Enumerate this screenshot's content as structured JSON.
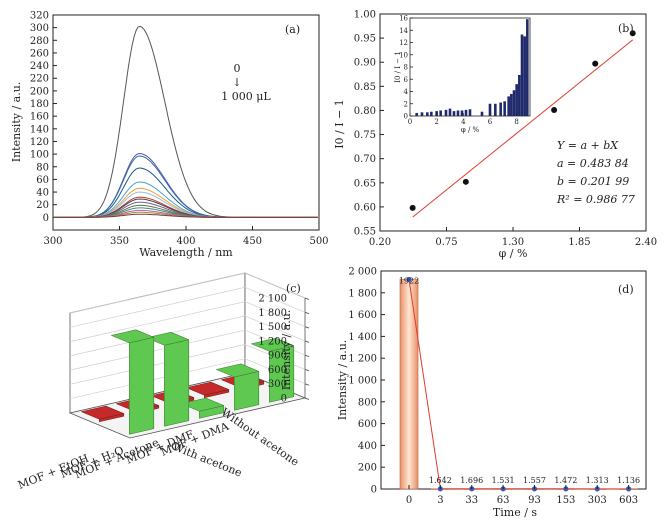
{
  "chart_data": [
    {
      "type": "line",
      "panel_label": "(a)",
      "xlabel": "Wavelength / nm",
      "ylabel": "Intensity / a.u.",
      "xlim": [
        300,
        500
      ],
      "ylim": [
        -20,
        320
      ],
      "xticks": [
        300,
        350,
        400,
        450,
        500
      ],
      "yticks": [
        0,
        20,
        40,
        60,
        80,
        100,
        120,
        140,
        160,
        180,
        200,
        220,
        240,
        260,
        280,
        300,
        320
      ],
      "peak_x": 365,
      "series": [
        {
          "peak": 302,
          "color": "#555555"
        },
        {
          "peak": 101,
          "color": "#5a55a0"
        },
        {
          "peak": 97,
          "color": "#2f6fb0"
        },
        {
          "peak": 78,
          "color": "#1d5a88"
        },
        {
          "peak": 56,
          "color": "#4aa0d8"
        },
        {
          "peak": 46,
          "color": "#f0a030"
        },
        {
          "peak": 40,
          "color": "#8ec3e8"
        },
        {
          "peak": 32,
          "color": "#c0392b"
        },
        {
          "peak": 29,
          "color": "#444444"
        },
        {
          "peak": 24,
          "color": "#7a5a9a"
        },
        {
          "peak": 19,
          "color": "#5a7a3a"
        },
        {
          "peak": 15,
          "color": "#3a8a8a"
        },
        {
          "peak": 11,
          "color": "#c45a90"
        },
        {
          "peak": 8,
          "color": "#a08a3a"
        },
        {
          "peak": 5,
          "color": "#7a3a3a"
        }
      ],
      "annotation_top": "0",
      "annotation_arrow": "↓",
      "annotation_bottom": "1 000 μL"
    },
    {
      "type": "scatter",
      "panel_label": "(b)",
      "xlabel": "φ / %",
      "ylabel": "I0 / I − 1",
      "xlim": [
        0.2,
        2.4
      ],
      "ylim": [
        0.55,
        1.0
      ],
      "xticks": [
        0.2,
        0.75,
        1.3,
        1.85,
        2.4
      ],
      "xtick_labels": [
        "0.20",
        "0.75",
        "1.30",
        "1.85",
        "2.40"
      ],
      "yticks": [
        0.55,
        0.6,
        0.65,
        0.7,
        0.75,
        0.8,
        0.85,
        0.9,
        0.95,
        1.0
      ],
      "ytick_labels": [
        "0.55",
        "0.60",
        "0.65",
        "0.70",
        "0.75",
        "0.80",
        "0.85",
        "0.90",
        "0.95",
        "1.00"
      ],
      "x": [
        0.47,
        0.91,
        1.64,
        1.98,
        2.29
      ],
      "y": [
        0.598,
        0.652,
        0.801,
        0.897,
        0.96
      ],
      "fit": {
        "a": 0.48384,
        "b": 0.20199,
        "x_range": [
          0.47,
          2.29
        ],
        "color": "#e03c28"
      },
      "equation": "Y = a + bX",
      "a_text": "a = 0.483 84",
      "b_text": "b = 0.201 99",
      "r2_text": "R² = 0.986 77",
      "inset": {
        "type": "bar",
        "xlabel": "φ / %",
        "ylabel": "I0 / I − 1",
        "xlim": [
          0,
          9
        ],
        "ylim": [
          0,
          16
        ],
        "xticks": [
          0,
          2,
          4,
          6,
          8
        ],
        "yticks": [
          0,
          2,
          4,
          6,
          8,
          10,
          12,
          14,
          16
        ],
        "x": [
          0.5,
          0.9,
          1.3,
          1.6,
          2.0,
          2.3,
          2.7,
          3.0,
          3.3,
          3.6,
          3.9,
          4.2,
          4.5,
          5.4,
          6.0,
          6.4,
          6.8,
          7.1,
          7.4,
          7.6,
          7.8,
          8.0,
          8.2,
          8.4,
          8.6,
          8.8
        ],
        "values": [
          0.5,
          0.6,
          0.6,
          0.7,
          0.8,
          0.9,
          1.0,
          1.2,
          0.8,
          0.9,
          0.9,
          1.0,
          1.1,
          0.7,
          2.0,
          2.0,
          2.2,
          2.4,
          3.2,
          3.6,
          4.2,
          5.2,
          6.7,
          13.3,
          13.0,
          15.8
        ],
        "color": "#1f2a6b"
      }
    },
    {
      "type": "bar",
      "panel_label": "(c)",
      "zlabel": "Intensity / a.u.",
      "zlim": [
        0,
        2100
      ],
      "zticks": [
        0,
        300,
        600,
        900,
        1200,
        1500,
        1800,
        2100
      ],
      "ztick_labels": [
        "0",
        "300",
        "600",
        "900",
        "1 200",
        "1 500",
        "1 800",
        "2 100"
      ],
      "categories": [
        "MOF + EtOH",
        "MOF + H₂O",
        "MOF + Acetone",
        "MOF + DMF",
        "MOF + DMA"
      ],
      "series": [
        {
          "name": "With acetone",
          "values": [
            55,
            55,
            55,
            55,
            55
          ],
          "color": "#c42a2a"
        },
        {
          "name": "Without acetone",
          "values": [
            1920,
            1700,
            150,
            700,
            1070
          ],
          "color": "#5fc850"
        }
      ]
    },
    {
      "type": "bar",
      "panel_label": "(d)",
      "xlabel": "Time / s",
      "ylabel": "Intensity / a.u.",
      "categories": [
        "0",
        "3",
        "33",
        "63",
        "93",
        "153",
        "303",
        "603"
      ],
      "values": [
        1922,
        1.642,
        1.696,
        1.531,
        1.557,
        1.472,
        1.313,
        1.136
      ],
      "value_labels": [
        "1922",
        "1.642",
        "1.696",
        "1.531",
        "1.557",
        "1.472",
        "1.313",
        "1.136"
      ],
      "ylim": [
        0,
        2000
      ],
      "yticks": [
        0,
        200,
        400,
        600,
        800,
        1000,
        1200,
        1400,
        1600,
        1800,
        2000
      ],
      "ytick_labels": [
        "0",
        "200",
        "400",
        "600",
        "800",
        "1 000",
        "1 200",
        "1 400",
        "1 600",
        "1 800",
        "2 000"
      ],
      "bar_color": "#f2b48a",
      "line_color": "#e03c28",
      "marker_color": "#3a5ab0"
    }
  ]
}
